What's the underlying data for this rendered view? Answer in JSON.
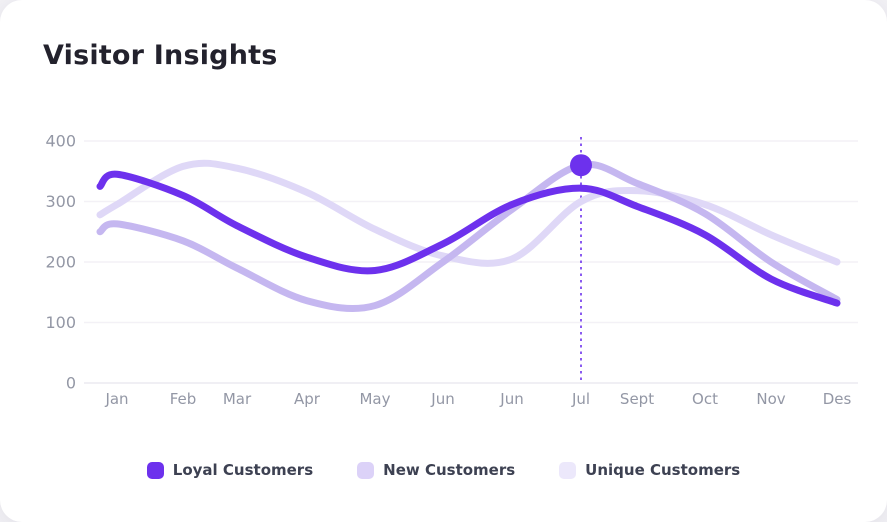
{
  "page": {
    "title": "Visitor Insights"
  },
  "colors": {
    "accent": "#6D31ED",
    "card_background": "#FFFFFF",
    "page_background": "#F2F1F5",
    "grid_line": "#F3F1F6",
    "axis_zero_line": "#ECEAF0",
    "axis_label": "#9397A5",
    "title_text": "#23222D",
    "legend_text": "#3D4152",
    "marker_dashed_line": "#6D31ED"
  },
  "chart_data": {
    "type": "line",
    "title": "Visitor Insights",
    "categories": [
      "Jan",
      "Feb",
      "Mar",
      "Apr",
      "May",
      "Jun",
      "Jun",
      "Jul",
      "Sept",
      "Oct",
      "Nov",
      "Des"
    ],
    "series": [
      {
        "name": "Loyal Customers",
        "color": "#6D31ED",
        "start_value": 325,
        "values": [
          345,
          310,
          260,
          208,
          186,
          230,
          295,
          322,
          292,
          245,
          172,
          132
        ]
      },
      {
        "name": "New Customers",
        "color": "#C5B7F0",
        "start_value": 250,
        "values": [
          263,
          235,
          190,
          136,
          128,
          200,
          287,
          360,
          330,
          280,
          200,
          138
        ]
      },
      {
        "name": "Unique Customers",
        "color": "#DFD8F7",
        "start_value": 278,
        "values": [
          295,
          358,
          355,
          315,
          254,
          210,
          205,
          300,
          318,
          295,
          245,
          200
        ]
      }
    ],
    "ylim": [
      0,
      400
    ],
    "yticks": [
      0,
      100,
      200,
      300,
      400
    ],
    "grid": true,
    "legend_position": "bottom",
    "marker": {
      "series": "New Customers",
      "category": "Jul",
      "category_index": 7,
      "value": 360
    }
  },
  "legend": {
    "items": [
      {
        "label": "Loyal Customers",
        "swatch": "#6D31ED"
      },
      {
        "label": "New Customers",
        "swatch": "#DCD2F8"
      },
      {
        "label": "Unique Customers",
        "swatch": "#ECE8FB"
      }
    ]
  }
}
